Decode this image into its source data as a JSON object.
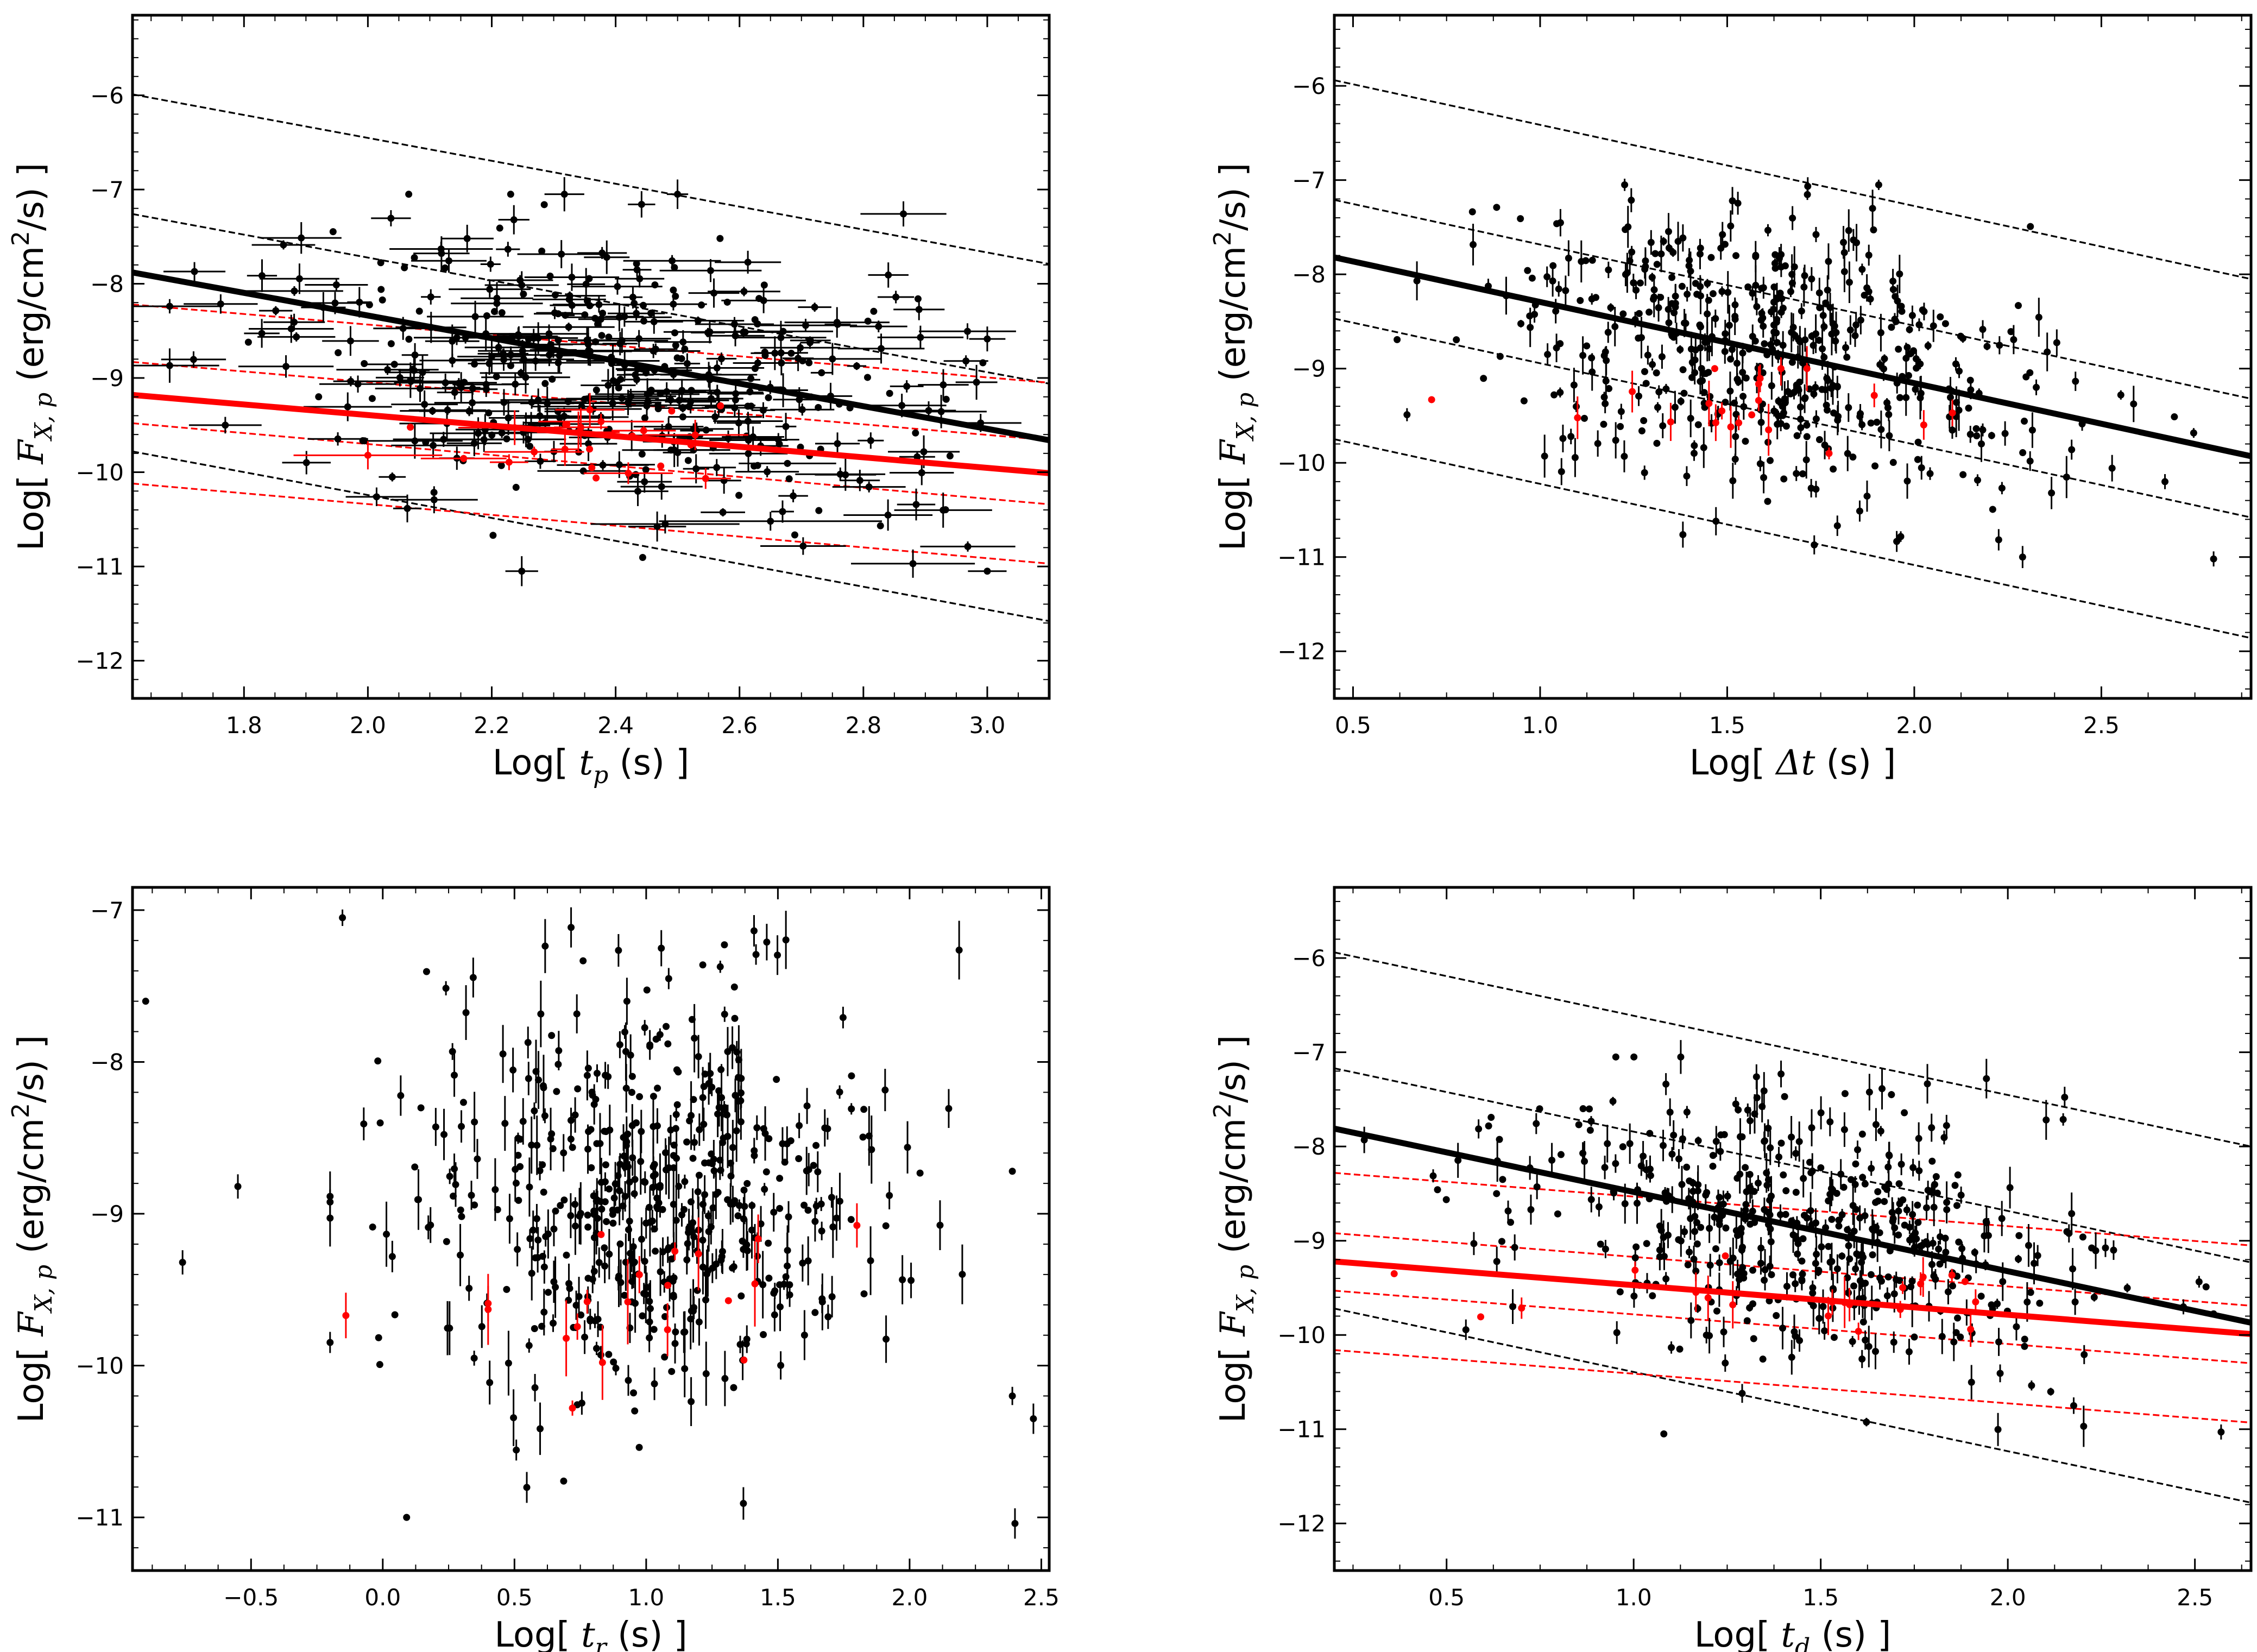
{
  "colors": {
    "black": "#000000",
    "red": "#ff0000"
  },
  "chart_data": [
    {
      "id": "tp",
      "type": "scatter",
      "xlabel": {
        "pre": "Log[ ",
        "var": "t",
        "sub": "p",
        "post": " (s) ]"
      },
      "ylabel": {
        "pre": "Log[ ",
        "var": "F",
        "sub": "X, p",
        "post": " (erg/cm",
        "sup": "2",
        "post2": "/s) ]"
      },
      "xlim": [
        1.62,
        3.1
      ],
      "ylim": [
        -12.4,
        -5.15
      ],
      "xticks": [
        1.8,
        2.0,
        2.2,
        2.4,
        2.6,
        2.8,
        3.0
      ],
      "xtick_labels": [
        "1.8",
        "2.0",
        "2.2",
        "2.4",
        "2.6",
        "2.8",
        "3.0"
      ],
      "yticks": [
        -12,
        -11,
        -10,
        -9,
        -8,
        -7,
        -6
      ],
      "ytick_labels": [
        "−12",
        "−11",
        "−10",
        "−9",
        "−8",
        "−7",
        "−6"
      ],
      "fits": [
        {
          "color": "black",
          "width": 5,
          "x": [
            1.62,
            3.1
          ],
          "y": [
            -7.88,
            -9.66
          ]
        },
        {
          "color": "red",
          "width": 5,
          "x": [
            1.62,
            3.1
          ],
          "y": [
            -9.18,
            -10.01
          ]
        }
      ],
      "bands": [
        {
          "color": "black",
          "x": [
            1.62,
            3.1
          ],
          "y": [
            -5.99,
            -7.79
          ]
        },
        {
          "color": "black",
          "x": [
            1.62,
            3.1
          ],
          "y": [
            -7.26,
            -9.06
          ]
        },
        {
          "color": "black",
          "x": [
            1.62,
            3.1
          ],
          "y": [
            -9.78,
            -11.58
          ]
        },
        {
          "color": "red",
          "x": [
            1.62,
            3.1
          ],
          "y": [
            -8.22,
            -9.05
          ]
        },
        {
          "color": "red",
          "x": [
            1.62,
            3.1
          ],
          "y": [
            -8.83,
            -9.66
          ]
        },
        {
          "color": "red",
          "x": [
            1.62,
            3.1
          ],
          "y": [
            -9.48,
            -10.34
          ]
        },
        {
          "color": "red",
          "x": [
            1.62,
            3.1
          ],
          "y": [
            -10.12,
            -10.97
          ]
        }
      ],
      "cloud_black": {
        "n": 460,
        "xc": 2.4,
        "xs": 0.26,
        "xmin": 1.68,
        "xmax": 3.0,
        "yc": -8.95,
        "ys": 0.72,
        "ymin": -11.05,
        "ymax": -7.05,
        "slope": -0.7,
        "seed": 11,
        "xerr": 0.05,
        "yerr": 0.1
      },
      "cloud_red": {
        "n": 24,
        "xc": 2.35,
        "xs": 0.15,
        "xmin": 2.0,
        "xmax": 2.8,
        "yc": -9.75,
        "ys": 0.25,
        "ymin": -10.3,
        "ymax": -9.1,
        "slope": 0,
        "seed": 5,
        "xerr": 0.06,
        "yerr": 0.12
      },
      "outliers": [
        {
          "x": 2.0,
          "y": -9.82,
          "xe": 0.12,
          "ye": 0.15,
          "color": "red"
        },
        {
          "x": 1.72,
          "y": -7.87,
          "xe": 0.05,
          "ye": 0.1,
          "color": "black"
        },
        {
          "x": 2.88,
          "y": -10.97,
          "xe": 0.1,
          "ye": 0.15,
          "color": "black"
        },
        {
          "x": 2.65,
          "y": -10.52,
          "xe": 0.18,
          "ye": 0.1,
          "color": "black"
        },
        {
          "x": 2.48,
          "y": -10.55,
          "xe": 0.12,
          "ye": 0.1,
          "color": "black"
        }
      ]
    },
    {
      "id": "dt",
      "type": "scatter",
      "xlabel": {
        "pre": "Log[ ",
        "var": "Δt",
        "sub": "",
        "post": " (s) ]"
      },
      "ylabel": {
        "pre": "Log[ ",
        "var": "F",
        "sub": "X, p",
        "post": " (erg/cm",
        "sup": "2",
        "post2": "/s) ]"
      },
      "xlim": [
        0.45,
        2.9
      ],
      "ylim": [
        -12.5,
        -5.25
      ],
      "xticks": [
        0.5,
        1.0,
        1.5,
        2.0,
        2.5
      ],
      "xtick_labels": [
        "0.5",
        "1.0",
        "1.5",
        "2.0",
        "2.5"
      ],
      "yticks": [
        -12,
        -11,
        -10,
        -9,
        -8,
        -7,
        -6
      ],
      "ytick_labels": [
        "−12",
        "−11",
        "−10",
        "−9",
        "−8",
        "−7",
        "−6"
      ],
      "fits": [
        {
          "color": "black",
          "width": 5,
          "x": [
            0.45,
            2.9
          ],
          "y": [
            -7.82,
            -9.93
          ]
        }
      ],
      "bands": [
        {
          "color": "black",
          "x": [
            0.45,
            2.9
          ],
          "y": [
            -5.94,
            -8.05
          ]
        },
        {
          "color": "black",
          "x": [
            0.45,
            2.9
          ],
          "y": [
            -7.21,
            -9.32
          ]
        },
        {
          "color": "black",
          "x": [
            0.45,
            2.9
          ],
          "y": [
            -8.47,
            -10.58
          ]
        },
        {
          "color": "black",
          "x": [
            0.45,
            2.9
          ],
          "y": [
            -9.75,
            -11.86
          ]
        }
      ],
      "cloud_black": {
        "n": 520,
        "xc": 1.6,
        "xs": 0.35,
        "xmin": 0.55,
        "xmax": 2.85,
        "yc": -8.85,
        "ys": 0.68,
        "ymin": -11.0,
        "ymax": -7.05,
        "slope": -0.7,
        "seed": 23,
        "xerr": 0,
        "yerr": 0.12
      },
      "cloud_red": {
        "n": 20,
        "xc": 1.55,
        "xs": 0.2,
        "xmin": 1.1,
        "xmax": 2.35,
        "yc": -9.45,
        "ys": 0.3,
        "ymin": -10.3,
        "ymax": -9.0,
        "slope": 0,
        "seed": 7,
        "xerr": 0,
        "yerr": 0.15
      },
      "outliers": [
        {
          "x": 0.71,
          "y": -9.33,
          "xe": 0,
          "ye": 0,
          "color": "red"
        },
        {
          "x": 2.8,
          "y": -11.02,
          "xe": 0,
          "ye": 0.08,
          "color": "black"
        },
        {
          "x": 2.67,
          "y": -10.2,
          "xe": 0,
          "ye": 0.08,
          "color": "black"
        },
        {
          "x": 1.47,
          "y": -10.62,
          "xe": 0,
          "ye": 0.15,
          "color": "black"
        }
      ]
    },
    {
      "id": "tr",
      "type": "scatter",
      "xlabel": {
        "pre": "Log[ ",
        "var": "t",
        "sub": "r",
        "post": " (s) ]"
      },
      "ylabel": {
        "pre": "Log[ ",
        "var": "F",
        "sub": "X, p",
        "post": " (erg/cm",
        "sup": "2",
        "post2": "/s) ]"
      },
      "xlim": [
        -0.95,
        2.53
      ],
      "ylim": [
        -11.35,
        -6.85
      ],
      "xticks": [
        -0.5,
        0.0,
        0.5,
        1.0,
        1.5,
        2.0,
        2.5
      ],
      "xtick_labels": [
        "−0.5",
        "0.0",
        "0.5",
        "1.0",
        "1.5",
        "2.0",
        "2.5"
      ],
      "yticks": [
        -11,
        -10,
        -9,
        -8,
        -7
      ],
      "ytick_labels": [
        "−11",
        "−10",
        "−9",
        "−8",
        "−7"
      ],
      "fits": [],
      "bands": [],
      "cloud_black": {
        "n": 560,
        "xc": 1.0,
        "xs": 0.45,
        "xmin": -0.2,
        "xmax": 2.2,
        "yc": -8.9,
        "ys": 0.7,
        "ymin": -11.0,
        "ymax": -7.05,
        "slope": 0,
        "seed": 41,
        "xerr": 0,
        "yerr": 0.12
      },
      "cloud_red": {
        "n": 18,
        "xc": 1.15,
        "xs": 0.35,
        "xmin": 0.4,
        "xmax": 1.8,
        "yc": -9.5,
        "ys": 0.3,
        "ymin": -10.3,
        "ymax": -9.05,
        "slope": 0,
        "seed": 3,
        "xerr": 0,
        "yerr": 0.15
      },
      "outliers": [
        {
          "x": -0.14,
          "y": -9.67,
          "xe": 0,
          "ye": 0.15,
          "color": "red"
        },
        {
          "x": 0.72,
          "y": -10.28,
          "xe": 0,
          "ye": 0.05,
          "color": "red"
        },
        {
          "x": -0.9,
          "y": -7.6,
          "xe": 0,
          "ye": 0,
          "color": "black"
        },
        {
          "x": -0.76,
          "y": -9.32,
          "xe": 0,
          "ye": 0.08,
          "color": "black"
        },
        {
          "x": -0.55,
          "y": -8.82,
          "xe": 0,
          "ye": 0.08,
          "color": "black"
        },
        {
          "x": 2.39,
          "y": -10.2,
          "xe": 0,
          "ye": 0.06,
          "color": "black"
        },
        {
          "x": 2.47,
          "y": -10.35,
          "xe": 0,
          "ye": 0.1,
          "color": "black"
        },
        {
          "x": 2.4,
          "y": -11.04,
          "xe": 0,
          "ye": 0.1,
          "color": "black"
        },
        {
          "x": 2.39,
          "y": -8.72,
          "xe": 0,
          "ye": 0,
          "color": "black"
        }
      ]
    },
    {
      "id": "td",
      "type": "scatter",
      "xlabel": {
        "pre": "Log[ ",
        "var": "t",
        "sub": "d",
        "post": " (s) ]"
      },
      "ylabel": {
        "pre": "Log[ ",
        "var": "F",
        "sub": "X, p",
        "post": " (erg/cm",
        "sup": "2",
        "post2": "/s) ]"
      },
      "xlim": [
        0.2,
        2.65
      ],
      "ylim": [
        -12.5,
        -5.25
      ],
      "xticks": [
        0.5,
        1.0,
        1.5,
        2.0,
        2.5
      ],
      "xtick_labels": [
        "0.5",
        "1.0",
        "1.5",
        "2.0",
        "2.5"
      ],
      "yticks": [
        -12,
        -11,
        -10,
        -9,
        -8,
        -7,
        -6
      ],
      "ytick_labels": [
        "−12",
        "−11",
        "−10",
        "−9",
        "−8",
        "−7",
        "−6"
      ],
      "fits": [
        {
          "color": "black",
          "width": 5,
          "x": [
            0.2,
            2.65
          ],
          "y": [
            -7.81,
            -9.87
          ]
        },
        {
          "color": "red",
          "width": 5,
          "x": [
            0.2,
            2.65
          ],
          "y": [
            -9.22,
            -9.99
          ]
        }
      ],
      "bands": [
        {
          "color": "black",
          "x": [
            0.2,
            2.65
          ],
          "y": [
            -5.94,
            -8.0
          ]
        },
        {
          "color": "black",
          "x": [
            0.2,
            2.65
          ],
          "y": [
            -7.17,
            -9.23
          ]
        },
        {
          "color": "black",
          "x": [
            0.2,
            2.65
          ],
          "y": [
            -9.72,
            -11.78
          ]
        },
        {
          "color": "red",
          "x": [
            0.2,
            2.65
          ],
          "y": [
            -8.28,
            -9.05
          ]
        },
        {
          "color": "red",
          "x": [
            0.2,
            2.65
          ],
          "y": [
            -8.92,
            -9.69
          ]
        },
        {
          "color": "red",
          "x": [
            0.2,
            2.65
          ],
          "y": [
            -9.53,
            -10.3
          ]
        },
        {
          "color": "red",
          "x": [
            0.2,
            2.65
          ],
          "y": [
            -10.16,
            -10.93
          ]
        }
      ],
      "cloud_black": {
        "n": 520,
        "xc": 1.5,
        "xs": 0.38,
        "xmin": 0.28,
        "xmax": 2.55,
        "yc": -8.95,
        "ys": 0.7,
        "ymin": -11.05,
        "ymax": -7.05,
        "slope": -0.7,
        "seed": 67,
        "xerr": 0,
        "yerr": 0.12
      },
      "cloud_red": {
        "n": 20,
        "xc": 1.4,
        "xs": 0.35,
        "xmin": 0.4,
        "xmax": 2.2,
        "yc": -9.6,
        "ys": 0.25,
        "ymin": -10.2,
        "ymax": -9.1,
        "slope": 0,
        "seed": 9,
        "xerr": 0,
        "yerr": 0.15
      },
      "outliers": [
        {
          "x": 0.36,
          "y": -9.35,
          "xe": 0,
          "ye": 0,
          "color": "red"
        },
        {
          "x": 2.57,
          "y": -11.03,
          "xe": 0,
          "ye": 0.08,
          "color": "black"
        },
        {
          "x": 1.29,
          "y": -10.62,
          "xe": 0,
          "ye": 0.1,
          "color": "black"
        }
      ]
    }
  ]
}
